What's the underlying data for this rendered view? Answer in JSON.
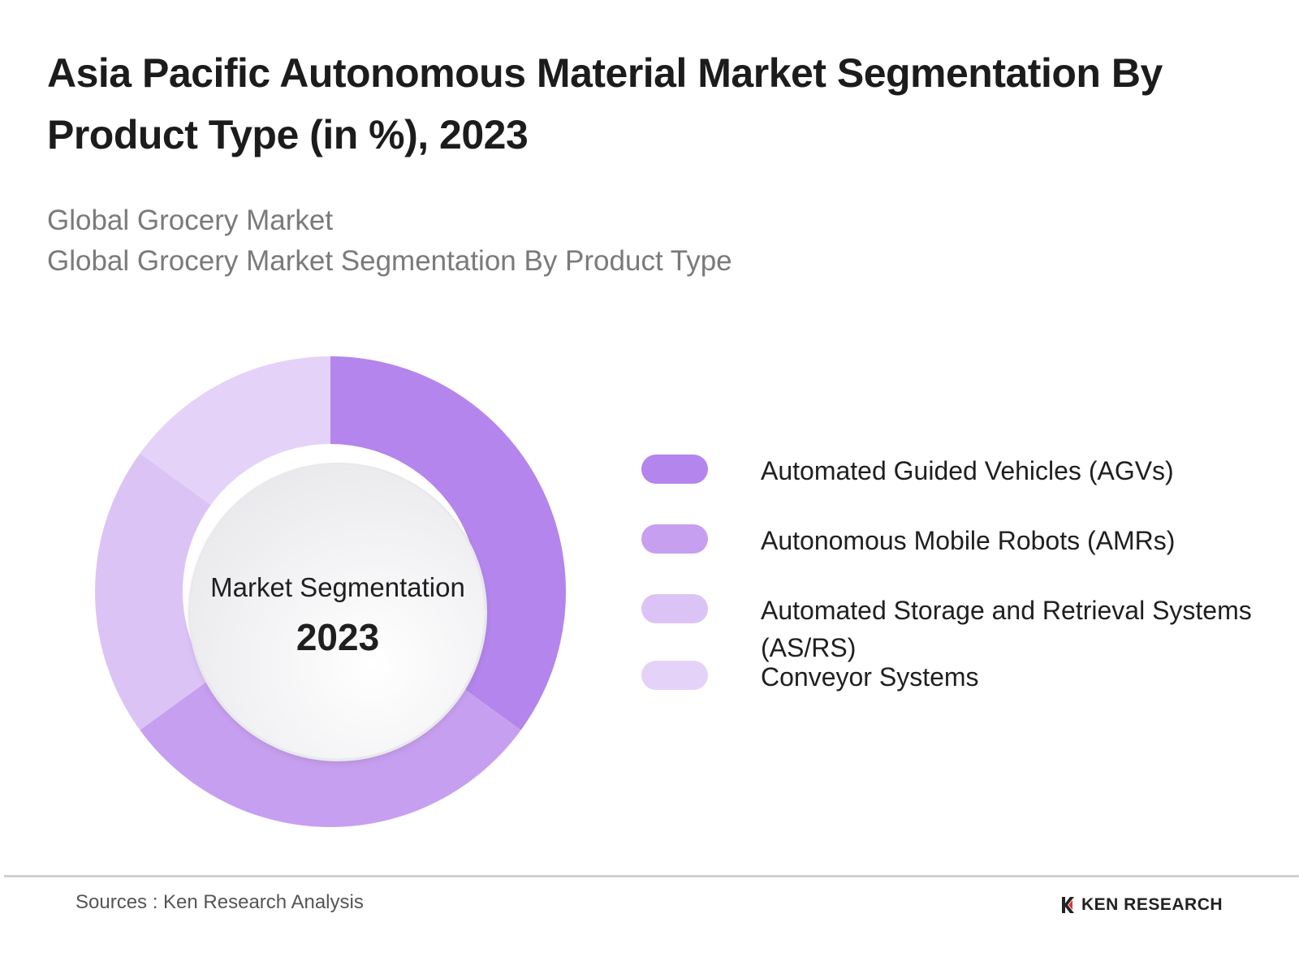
{
  "header": {
    "title": "Asia Pacific Autonomous Material Market Segmentation By Product Type (in %), 2023",
    "subtitle_1": "Global Grocery Market",
    "subtitle_2": "Global Grocery Market Segmentation By Product Type"
  },
  "chart_data": {
    "type": "pie",
    "title": "Asia Pacific Autonomous Material Market Segmentation By Product Type (in %), 2023",
    "center_label": "Market Segmentation",
    "center_year": "2023",
    "categories": [
      "Automated Guided Vehicles (AGVs)",
      "Autonomous Mobile Robots (AMRs)",
      "Automated Storage and Retrieval Systems (AS/RS)",
      "Conveyor Systems"
    ],
    "values": [
      35,
      30,
      20,
      15
    ],
    "colors": [
      "#b485ec",
      "#c79ff0",
      "#dcc3f6",
      "#e5d2f8"
    ],
    "legend_position": "right"
  },
  "footer": {
    "sources": "Sources : Ken Research Analysis",
    "brand": "KEN RESEARCH"
  }
}
